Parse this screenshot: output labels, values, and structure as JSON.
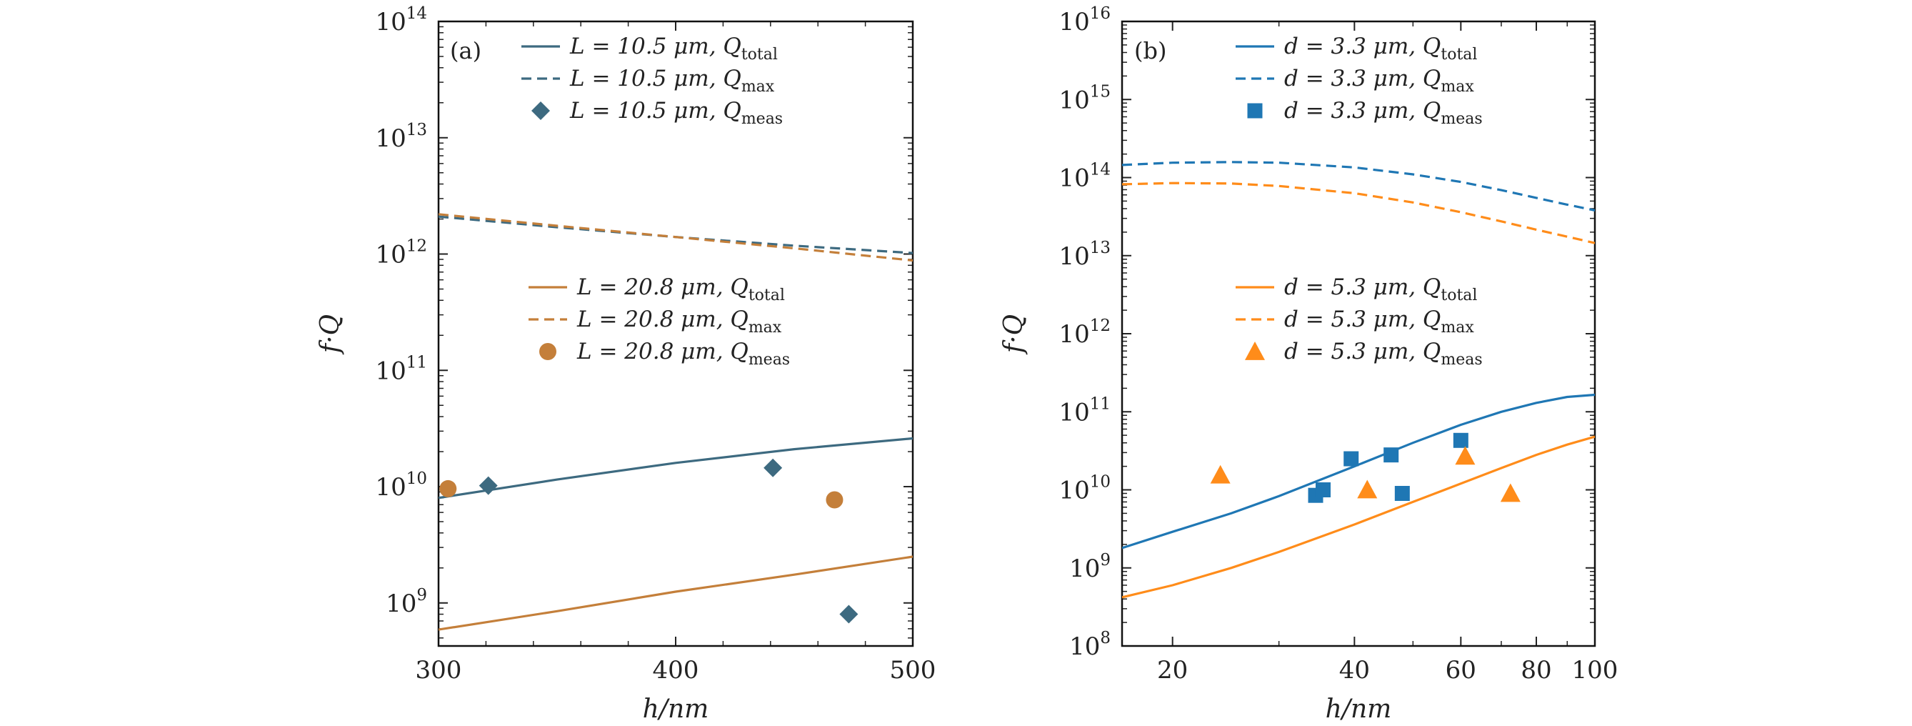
{
  "chart_data": [
    {
      "type": "line",
      "panel_label": "(a)",
      "xscale": "linear",
      "yscale": "log",
      "xlim": [
        300,
        500
      ],
      "ylim_exp": [
        8.63,
        14
      ],
      "xticks": [
        300,
        400,
        500
      ],
      "xtick_labels": [
        "300",
        "400",
        "500"
      ],
      "ytick_exps": [
        9,
        10,
        11,
        12,
        13,
        14
      ],
      "ytick_base": "10",
      "ytick_sups": [
        "9",
        "10",
        "11",
        "12",
        "13",
        "14"
      ],
      "xlabel": "h/nm",
      "ylabel": "f·Q",
      "series": [
        {
          "name": "L = 10.5 µm, Q_total",
          "legend_label": "L = 10.5 μm, Q",
          "legend_sub": "total",
          "kind": "solid",
          "color": "#3d6a80",
          "x": [
            300,
            350,
            400,
            450,
            500
          ],
          "y": [
            8000000000.0,
            11500000000.0,
            16000000000.0,
            21000000000.0,
            26000000000.0
          ]
        },
        {
          "name": "L = 10.5 µm, Q_max",
          "legend_label": "L = 10.5 μm, Q",
          "legend_sub": "max",
          "kind": "dashed",
          "color": "#3d6a80",
          "x": [
            300,
            350,
            400,
            450,
            500
          ],
          "y": [
            2100000000000.0,
            1700000000000.0,
            1400000000000.0,
            1180000000000.0,
            1020000000000.0
          ]
        },
        {
          "name": "L = 10.5 µm, Q_meas",
          "legend_label": "L = 10.5 μm, Q",
          "legend_sub": "meas",
          "kind": "diamond",
          "color": "#3d6a80",
          "x": [
            321,
            441,
            473
          ],
          "y": [
            10200000000.0,
            14500000000.0,
            800000000.0
          ]
        },
        {
          "name": "L = 20.8 µm, Q_total",
          "legend_label": "L = 20.8 μm, Q",
          "legend_sub": "total",
          "kind": "solid",
          "color": "#c47f3a",
          "x": [
            300,
            350,
            400,
            450,
            500
          ],
          "y": [
            590000000.0,
            850000000.0,
            1250000000.0,
            1750000000.0,
            2500000000.0
          ]
        },
        {
          "name": "L = 20.8 µm, Q_max",
          "legend_label": "L = 20.8 μm, Q",
          "legend_sub": "max",
          "kind": "dashed",
          "color": "#c47f3a",
          "x": [
            300,
            350,
            400,
            450,
            500
          ],
          "y": [
            2200000000000.0,
            1750000000000.0,
            1400000000000.0,
            1120000000000.0,
            880000000000.0
          ]
        },
        {
          "name": "L = 20.8 µm, Q_meas",
          "legend_label": "L = 20.8 μm, Q",
          "legend_sub": "meas",
          "kind": "circle",
          "color": "#c47f3a",
          "x": [
            304,
            467
          ],
          "y": [
            9600000000.0,
            7700000000.0
          ]
        }
      ]
    },
    {
      "type": "line",
      "panel_label": "(b)",
      "xscale": "log",
      "yscale": "log",
      "xlim": [
        16.5,
        100
      ],
      "ylim_exp": [
        8,
        16
      ],
      "xticks": [
        20,
        40,
        60,
        80,
        100
      ],
      "xtick_labels": [
        "20",
        "40",
        "60",
        "80",
        "100"
      ],
      "ytick_exps": [
        8,
        9,
        10,
        11,
        12,
        13,
        14,
        15,
        16
      ],
      "ytick_base": "10",
      "ytick_sups": [
        "8",
        "9",
        "10",
        "11",
        "12",
        "13",
        "14",
        "15",
        "16"
      ],
      "xlabel": "h/nm",
      "ylabel": "f·Q",
      "series": [
        {
          "name": "d = 3.3 µm, Q_total",
          "legend_label": "d = 3.3 μm, Q",
          "legend_sub": "total",
          "kind": "solid",
          "color": "#1f77b4",
          "x": [
            16.5,
            20,
            25,
            30,
            40,
            50,
            60,
            70,
            80,
            90,
            100
          ],
          "y": [
            1800000000.0,
            2900000000.0,
            5000000000.0,
            8300000000.0,
            20000000000.0,
            40000000000.0,
            68000000000.0,
            100000000000.0,
            130000000000.0,
            155000000000.0,
            165000000000.0
          ]
        },
        {
          "name": "d = 3.3 µm, Q_max",
          "legend_label": "d = 3.3 μm, Q",
          "legend_sub": "max",
          "kind": "dashed",
          "color": "#1f77b4",
          "x": [
            16.5,
            20,
            25,
            30,
            40,
            50,
            60,
            70,
            80,
            90,
            100
          ],
          "y": [
            145000000000000.0,
            155000000000000.0,
            158000000000000.0,
            155000000000000.0,
            135000000000000.0,
            110000000000000.0,
            88000000000000.0,
            69000000000000.0,
            55000000000000.0,
            45000000000000.0,
            38000000000000.0
          ]
        },
        {
          "name": "d = 3.3 µm, Q_meas",
          "legend_label": "d = 3.3 μm, Q",
          "legend_sub": "meas",
          "kind": "square",
          "color": "#1f77b4",
          "x": [
            34.5,
            35.5,
            39.5,
            46,
            48,
            60
          ],
          "y": [
            8500000000.0,
            10000000000.0,
            25000000000.0,
            28000000000.0,
            9000000000.0,
            43000000000.0
          ]
        },
        {
          "name": "d = 5.3 µm, Q_total",
          "legend_label": "d = 5.3 μm, Q",
          "legend_sub": "total",
          "kind": "solid",
          "color": "#ff8c1a",
          "x": [
            16.5,
            20,
            25,
            30,
            40,
            50,
            60,
            70,
            80,
            90,
            100
          ],
          "y": [
            420000000.0,
            600000000.0,
            1000000000.0,
            1600000000.0,
            3600000000.0,
            7000000000.0,
            12000000000.0,
            19000000000.0,
            28000000000.0,
            38000000000.0,
            48000000000.0
          ]
        },
        {
          "name": "d = 5.3 µm, Q_max",
          "legend_label": "d = 5.3 μm, Q",
          "legend_sub": "max",
          "kind": "dashed",
          "color": "#ff8c1a",
          "x": [
            16.5,
            20,
            25,
            30,
            40,
            50,
            60,
            70,
            80,
            90,
            100
          ],
          "y": [
            82000000000000.0,
            85000000000000.0,
            84000000000000.0,
            78000000000000.0,
            63000000000000.0,
            48000000000000.0,
            36000000000000.0,
            27500000000000.0,
            21500000000000.0,
            17500000000000.0,
            14500000000000.0
          ]
        },
        {
          "name": "d = 5.3 µm, Q_meas",
          "legend_label": "d = 5.3 μm, Q",
          "legend_sub": "meas",
          "kind": "triangle",
          "color": "#ff8c1a",
          "x": [
            24,
            42,
            61,
            72.5
          ],
          "y": [
            15500000000.0,
            10000000000.0,
            27000000000.0,
            9000000000.0
          ]
        }
      ]
    }
  ]
}
